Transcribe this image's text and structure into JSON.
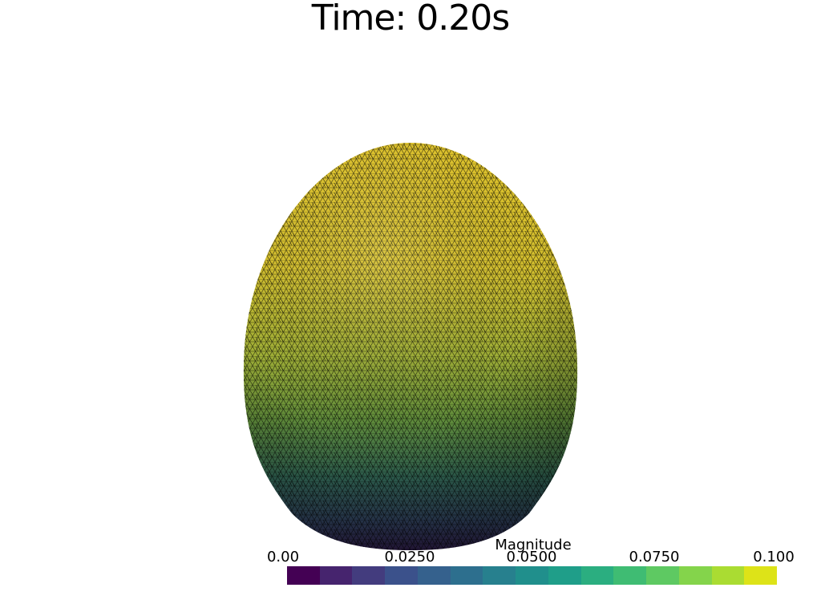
{
  "title": "Time: 0.20s",
  "colorbar": {
    "title": "Magnitude",
    "min": 0.0,
    "max": 0.1,
    "ticks": [
      "0.00",
      "0.0250",
      "0.0500",
      "0.0750",
      "0.100"
    ],
    "colors": [
      "#440154",
      "#46246e",
      "#433c7e",
      "#3b518b",
      "#35618d",
      "#2d6f8e",
      "#27808e",
      "#208f8c",
      "#1f9e89",
      "#2bae80",
      "#3fbc73",
      "#5ec962",
      "#84d44b",
      "#aadc32",
      "#dde318"
    ]
  },
  "mesh": {
    "shape": "egg",
    "colormap": "viridis",
    "top_color": "#d9c22a",
    "bottom_color": "#2c1c44",
    "wireframe_color": "#000000"
  }
}
